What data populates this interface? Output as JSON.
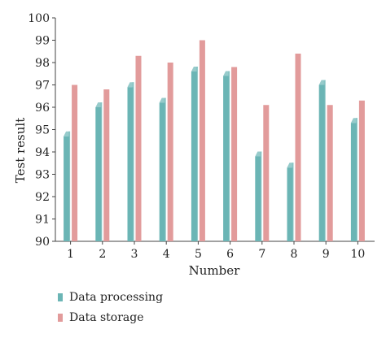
{
  "chart_data": {
    "type": "bar",
    "title": "",
    "xlabel": "Number",
    "ylabel": "Test result",
    "ylim": [
      90,
      100
    ],
    "yticks": [
      90,
      91,
      92,
      93,
      94,
      95,
      96,
      97,
      98,
      99,
      100
    ],
    "categories": [
      "1",
      "2",
      "3",
      "4",
      "5",
      "6",
      "7",
      "8",
      "9",
      "10"
    ],
    "series": [
      {
        "name": "Data processing",
        "color": "#6bb5b5",
        "values": [
          94.7,
          96.0,
          96.9,
          96.2,
          97.6,
          97.4,
          93.8,
          93.3,
          97.0,
          95.3
        ]
      },
      {
        "name": "Data storage",
        "color": "#e29b9b",
        "values": [
          97.0,
          96.8,
          98.3,
          98.0,
          99.0,
          97.8,
          96.1,
          98.4,
          96.1,
          96.3
        ]
      }
    ],
    "legend_position": "bottom-left",
    "grid": false
  }
}
